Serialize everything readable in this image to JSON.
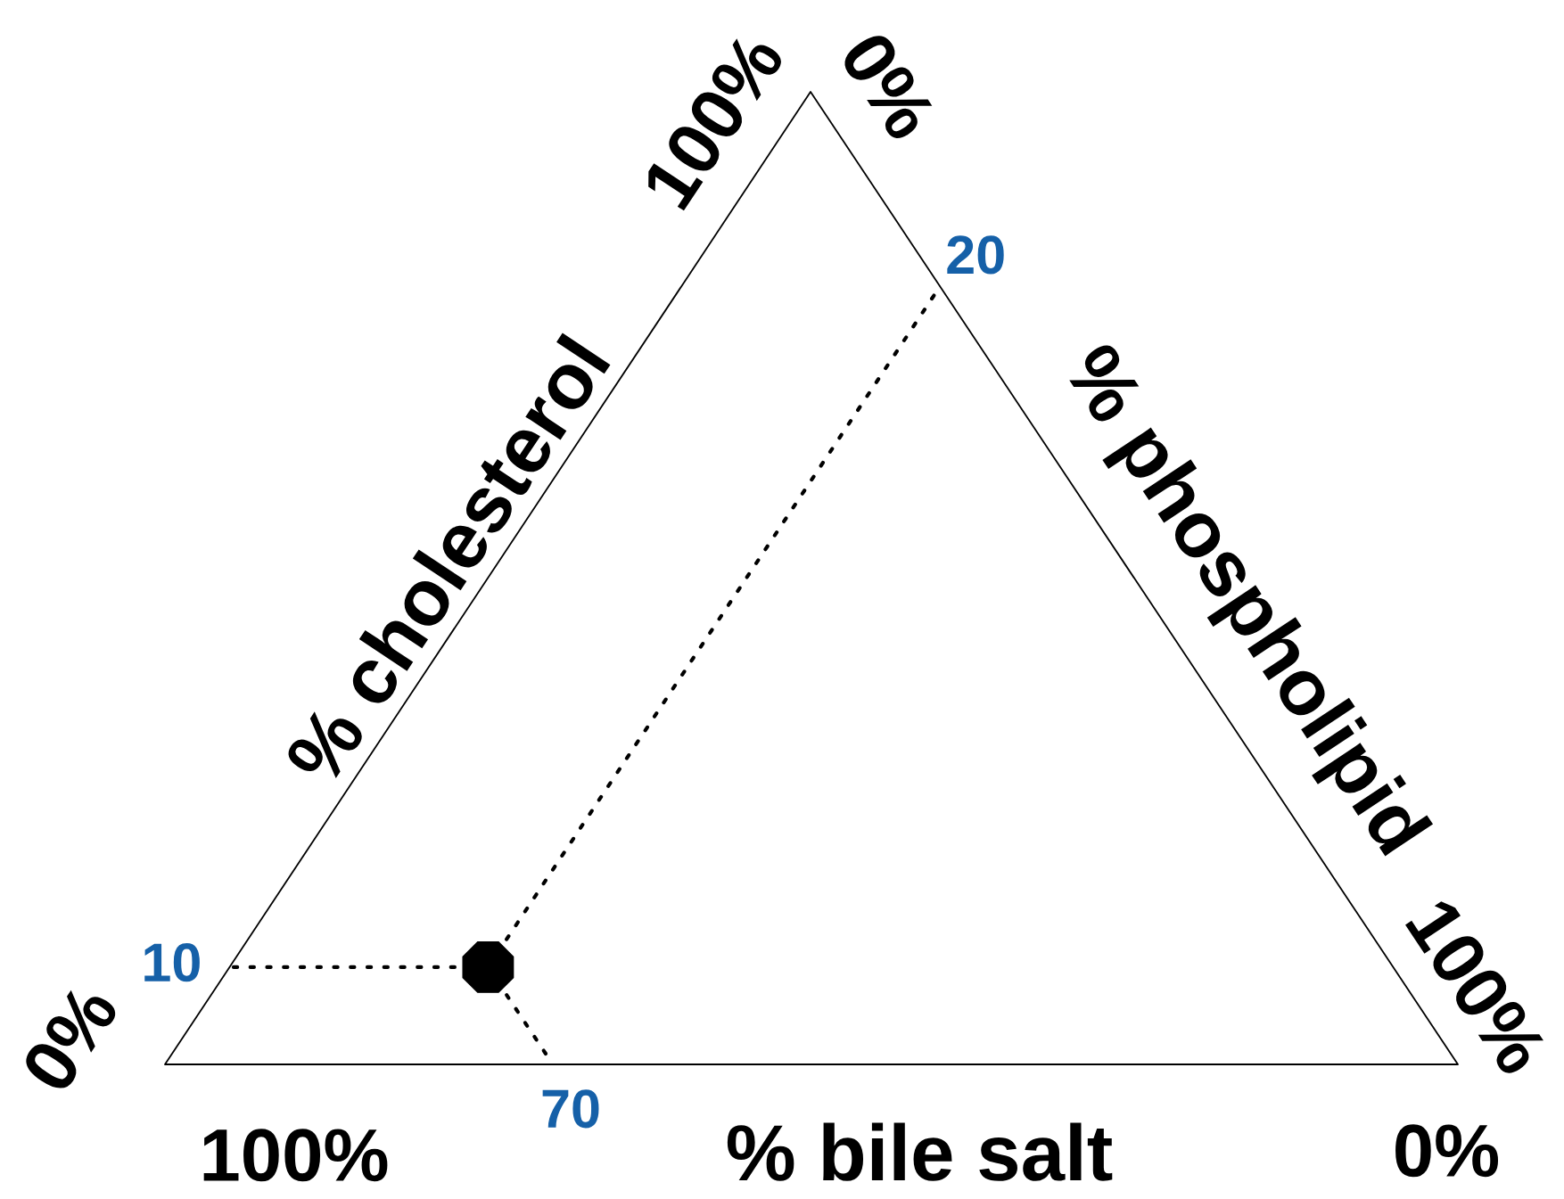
{
  "chart_data": {
    "type": "other",
    "categories": [
      "% cholesterol",
      "% phospholipid",
      "% bile salt"
    ],
    "values": [
      10,
      20,
      70
    ],
    "colors": [
      "#1560a8",
      "#1560a8",
      "#1560a8"
    ],
    "color": "#000000",
    "value_labels": [
      "10",
      "20",
      "70"
    ],
    "annotations": [
      "0%",
      "100%",
      "0%",
      "100%",
      "100%",
      "0%"
    ]
  }
}
